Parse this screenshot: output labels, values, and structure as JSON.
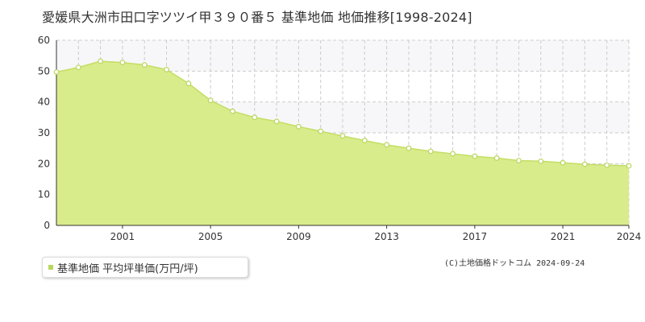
{
  "colors": {
    "fill": "#d9ec8c",
    "line": "#c3de63",
    "marker_fill": "#ffffff",
    "marker_stroke": "#b9d65e",
    "legend_marker": "#b9d65e",
    "grid": "#cccccc",
    "band": "#f7f7f9"
  },
  "credit": "(C)土地価格ドットコム 2024-09-24",
  "chart_data": {
    "type": "area",
    "title": "愛媛県大洲市田口字ツツイ甲３９０番５ 基準地価 地価推移[1998-2024]",
    "xlabel": "",
    "ylabel": "",
    "xlim": [
      1998,
      2024
    ],
    "ylim": [
      0,
      60
    ],
    "y_ticks": [
      "0",
      "10",
      "20",
      "30",
      "40",
      "50",
      "60"
    ],
    "x_ticks": [
      "2001",
      "2005",
      "2009",
      "2013",
      "2017",
      "2021",
      "2024"
    ],
    "grid": true,
    "legend_position": "bottom-left",
    "series": [
      {
        "name": "基準地価 平均坪単価(万円/坪)",
        "x": [
          1998,
          1999,
          2000,
          2001,
          2002,
          2003,
          2004,
          2005,
          2006,
          2007,
          2008,
          2009,
          2010,
          2011,
          2012,
          2013,
          2014,
          2015,
          2016,
          2017,
          2018,
          2019,
          2020,
          2021,
          2022,
          2023,
          2024
        ],
        "values": [
          49.7,
          51.2,
          53.2,
          52.8,
          52.0,
          50.5,
          46.0,
          40.5,
          37.0,
          35.0,
          33.7,
          32.0,
          30.5,
          29.0,
          27.5,
          26.1,
          25.0,
          24.0,
          23.2,
          22.4,
          21.8,
          21.0,
          20.8,
          20.3,
          19.8,
          19.5,
          19.3
        ]
      }
    ]
  }
}
